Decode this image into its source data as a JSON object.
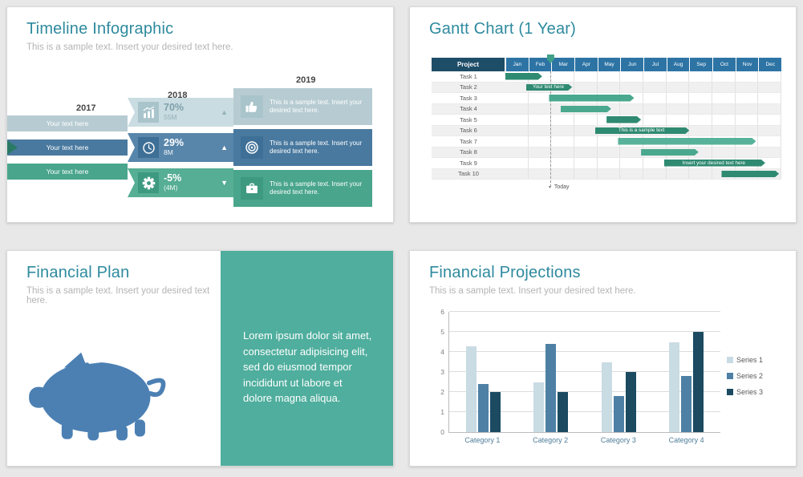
{
  "theme": {
    "title_color": "#2e8a9e",
    "subtitle_color": "#b4b4b4",
    "teal": "#49a58c",
    "blue": "#49799f",
    "dark_navy": "#1e4d68"
  },
  "timeline_slide": {
    "title": "Timeline Infographic",
    "subtitle": "This is a sample text. Insert your desired text here.",
    "years": [
      "2017",
      "2018",
      "2019"
    ],
    "rows": [
      {
        "left_label": "Your text here",
        "stat_icon": "bar-chart-icon",
        "value": "70%",
        "value_sub": "55M",
        "trend": "up",
        "right_icon": "thumbs-up-icon",
        "right_text": "This is a sample  text. Insert your desired text here.",
        "colors": {
          "band": "#b7ccd2",
          "mid": "#c9dce1",
          "box": "#a9c4cb"
        }
      },
      {
        "left_label": "Your text here",
        "stat_icon": "clock-icon",
        "value": "29%",
        "value_sub": "8M",
        "trend": "up",
        "right_icon": "target-icon",
        "right_text": "This is a sample  text. Insert your desired text here.",
        "colors": {
          "band": "#49799f",
          "mid": "#5886ab",
          "box": "#3e6f96"
        }
      },
      {
        "left_label": "Your text here",
        "stat_icon": "gear-icon",
        "value": "-5%",
        "value_sub": "(4M)",
        "trend": "down",
        "right_icon": "briefcase-icon",
        "right_text": "This is a sample  text. Insert your desired text here.",
        "colors": {
          "band": "#49a58c",
          "mid": "#56ae94",
          "box": "#3d9a80"
        }
      }
    ]
  },
  "gantt_slide": {
    "title": "Gantt Chart (1 Year)",
    "project_header": "Project",
    "months": [
      "Jan",
      "Feb",
      "Mar",
      "Apr",
      "May",
      "Jun",
      "Jul",
      "Aug",
      "Sep",
      "Oct",
      "Nov",
      "Dec"
    ],
    "today_label": "Today",
    "today_month": 1.95,
    "tasks": [
      {
        "name": "Task 1",
        "start": 0,
        "end": 1.6,
        "color": "#2f8a72",
        "label": ""
      },
      {
        "name": "Task 2",
        "start": 0.9,
        "end": 2.9,
        "color": "#2f8a72",
        "label": "Your text here"
      },
      {
        "name": "Task 3",
        "start": 1.9,
        "end": 5.6,
        "color": "#4aa88e",
        "label": ""
      },
      {
        "name": "Task 4",
        "start": 2.4,
        "end": 4.6,
        "color": "#4aa88e",
        "label": ""
      },
      {
        "name": "Task 5",
        "start": 4.4,
        "end": 5.9,
        "color": "#2f8a72",
        "label": ""
      },
      {
        "name": "Task 6",
        "start": 3.9,
        "end": 8.0,
        "color": "#2f8a72",
        "label": "This is a sample text"
      },
      {
        "name": "Task 7",
        "start": 4.9,
        "end": 10.9,
        "color": "#58b29a",
        "label": ""
      },
      {
        "name": "Task 8",
        "start": 5.9,
        "end": 8.4,
        "color": "#4aa88e",
        "label": ""
      },
      {
        "name": "Task 9",
        "start": 6.9,
        "end": 11.3,
        "color": "#2f8a72",
        "label": "Insert your desired text here"
      },
      {
        "name": "Task 10",
        "start": 9.4,
        "end": 11.9,
        "color": "#2f8a72",
        "label": ""
      }
    ]
  },
  "financial_plan_slide": {
    "title": "Financial Plan",
    "subtitle": "This is a sample text. Insert your desired text here.",
    "panel_text": "Lorem ipsum dolor sit amet, consectetur adipisicing elit, sed do eiusmod tempor incididunt ut labore et dolore magna aliqua.",
    "panel_color": "#4fae9d",
    "piggy_color": "#4c80b3"
  },
  "projections_slide": {
    "title": "Financial Projections",
    "subtitle": "This is a sample text. Insert your desired text here."
  },
  "chart_data": {
    "type": "bar",
    "title": "Financial Projections",
    "categories": [
      "Category 1",
      "Category 2",
      "Category 3",
      "Category 4"
    ],
    "series": [
      {
        "name": "Series 1",
        "color": "#c9dbe3",
        "values": [
          4.3,
          2.5,
          3.5,
          4.5
        ]
      },
      {
        "name": "Series 2",
        "color": "#4e80a5",
        "values": [
          2.4,
          4.4,
          1.8,
          2.8
        ]
      },
      {
        "name": "Series 3",
        "color": "#1b4a61",
        "values": [
          2,
          2,
          3,
          5
        ]
      }
    ],
    "xlabel": "",
    "ylabel": "",
    "ylim": [
      0,
      6
    ],
    "yticks": [
      0,
      1,
      2,
      3,
      4,
      5,
      6
    ],
    "grid": true,
    "legend_position": "right"
  }
}
